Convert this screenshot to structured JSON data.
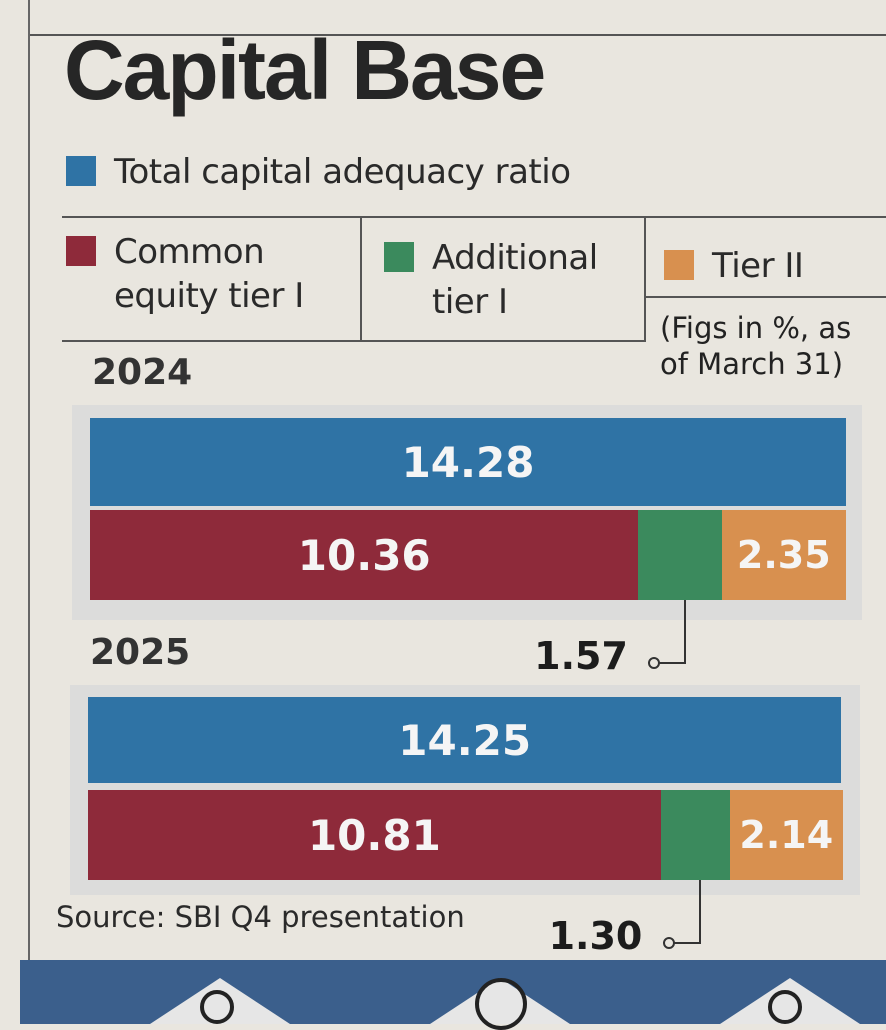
{
  "header": {
    "title": "Capital Base"
  },
  "legend": {
    "total": "Total capital adequacy ratio",
    "cet1": "Common\nequity tier I",
    "at1": "Additional\ntier I",
    "tier2": "Tier II"
  },
  "note": "(Figs in %, as\nof March 31)",
  "source": "Source: SBI Q4 presentation",
  "colors": {
    "total": "#2f73a5",
    "cet1": "#8e2a3a",
    "at1": "#3b8a5d",
    "tier2": "#d8904f"
  },
  "chart_data": {
    "type": "bar",
    "title": "Capital Base",
    "orientation": "horizontal",
    "unit": "%",
    "years": [
      {
        "year": "2024",
        "total": 14.28,
        "cet1": 10.36,
        "at1": 1.57,
        "tier2": 2.35
      },
      {
        "year": "2025",
        "total": 14.25,
        "cet1": 10.81,
        "at1": 1.3,
        "tier2": 2.14
      }
    ],
    "labels": {
      "2024": {
        "year": "2024",
        "total": "14.28",
        "cet1": "10.36",
        "at1": "1.57",
        "tier2": "2.35"
      },
      "2025": {
        "year": "2025",
        "total": "14.25",
        "cet1": "10.81",
        "at1": "1.30",
        "tier2": "2.14"
      }
    }
  }
}
